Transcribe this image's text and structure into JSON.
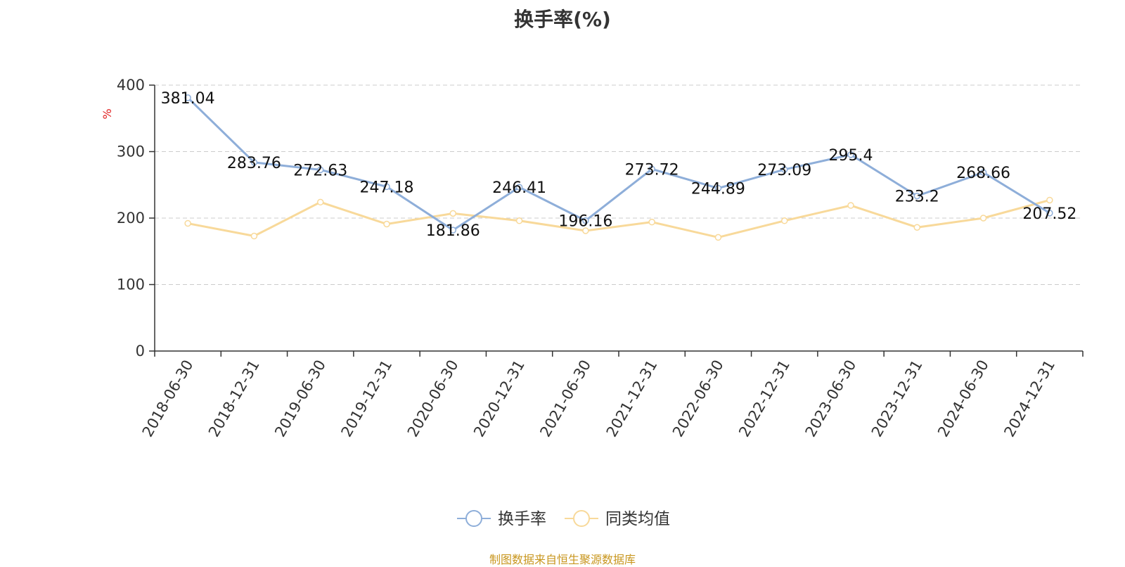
{
  "chart_data": {
    "type": "line",
    "title": "换手率(%)",
    "ylabel": "%",
    "ylim": [
      0,
      400
    ],
    "yticks": [
      0,
      100,
      200,
      300,
      400
    ],
    "categories": [
      "2018-06-30",
      "2018-12-31",
      "2019-06-30",
      "2019-12-31",
      "2020-06-30",
      "2020-12-31",
      "2021-06-30",
      "2021-12-31",
      "2022-06-30",
      "2022-12-31",
      "2023-06-30",
      "2023-12-31",
      "2024-06-30",
      "2024-12-31"
    ],
    "series": [
      {
        "name": "换手率",
        "color": "#8eaed9",
        "values": [
          381.04,
          283.76,
          272.63,
          247.18,
          181.86,
          246.41,
          196.16,
          273.72,
          244.89,
          273.09,
          295.4,
          233.2,
          268.66,
          207.52
        ],
        "labels": [
          "381.04",
          "283.76",
          "272.63",
          "247.18",
          "181.86",
          "246.41",
          "196.16",
          "273.72",
          "244.89",
          "273.09",
          "295.4",
          "233.2",
          "268.66",
          "207.52"
        ]
      },
      {
        "name": "同类均值",
        "color": "#f8d99a",
        "values": [
          192,
          173,
          224,
          191,
          207,
          196,
          181,
          194,
          171,
          196,
          219,
          186,
          200,
          227
        ]
      }
    ],
    "legend_position": "bottom",
    "grid": true
  },
  "footer": {
    "source": "制图数据来自恒生聚源数据库"
  }
}
